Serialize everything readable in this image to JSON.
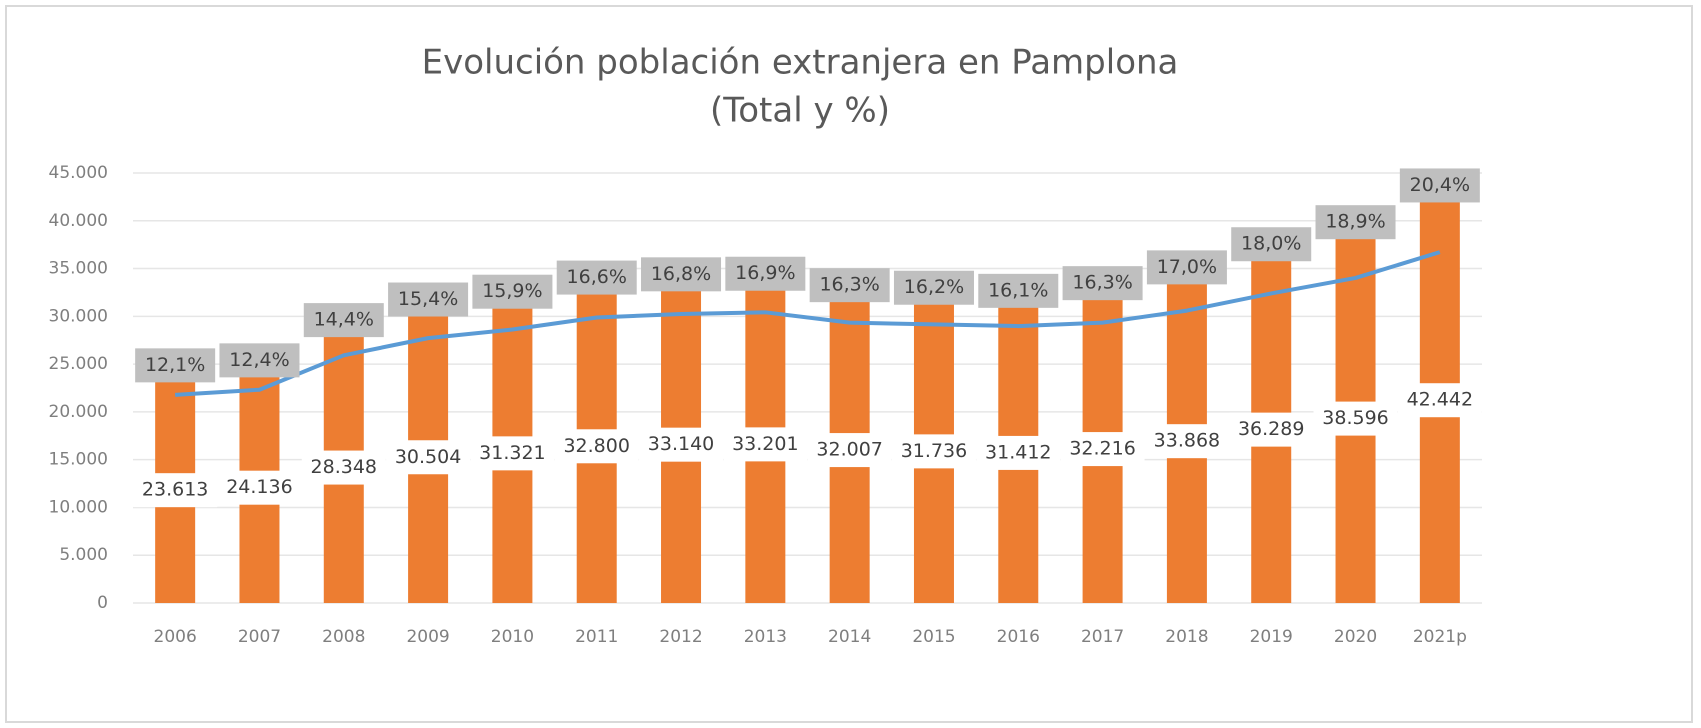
{
  "chart_data": {
    "type": "bar_line",
    "title": "Evolución población extranjera en Pamplona",
    "subtitle": "(Total y %)",
    "categories": [
      "2006",
      "2007",
      "2008",
      "2009",
      "2010",
      "2011",
      "2012",
      "2013",
      "2014",
      "2015",
      "2016",
      "2017",
      "2018",
      "2019",
      "2020",
      "2021p"
    ],
    "series": [
      {
        "type": "bar",
        "color": "#ed7d31",
        "values": [
          23613,
          24136,
          28348,
          30504,
          31321,
          32800,
          33140,
          33201,
          32007,
          31736,
          31412,
          32216,
          33868,
          36289,
          38596,
          42442
        ],
        "value_labels": [
          "23.613",
          "24.136",
          "28.348",
          "30.504",
          "31.321",
          "32.800",
          "33.140",
          "33.201",
          "32.007",
          "31.736",
          "31.412",
          "32.216",
          "33.868",
          "36.289",
          "38.596",
          "42.442"
        ]
      },
      {
        "type": "line",
        "color": "#5b9bd5",
        "axis": "y2",
        "values": [
          12.1,
          12.4,
          14.4,
          15.4,
          15.9,
          16.6,
          16.8,
          16.9,
          16.3,
          16.2,
          16.1,
          16.3,
          17.0,
          18.0,
          18.9,
          20.4
        ],
        "value_labels": [
          "12,1%",
          "12,4%",
          "14,4%",
          "15,4%",
          "15,9%",
          "16,6%",
          "16,8%",
          "16,9%",
          "16,3%",
          "16,2%",
          "16,1%",
          "16,3%",
          "17,0%",
          "18,0%",
          "18,9%",
          "20,4%"
        ]
      }
    ],
    "ylim": [
      0,
      45000
    ],
    "yticks": [
      0,
      {
        "value": 5000,
        "label": "5.000"
      },
      {
        "value": 10000,
        "label": "10.000"
      },
      {
        "value": 15000,
        "label": "15.000"
      },
      {
        "value": 20000,
        "label": "20.000"
      },
      {
        "value": 25000,
        "label": "25.000"
      },
      {
        "value": 30000,
        "label": "30.000"
      },
      {
        "value": 35000,
        "label": "35.000"
      },
      {
        "value": 40000,
        "label": "40.000"
      },
      {
        "value": 45000,
        "label": "45.000"
      }
    ],
    "y2lim": [
      0,
      25
    ],
    "grid": true
  }
}
